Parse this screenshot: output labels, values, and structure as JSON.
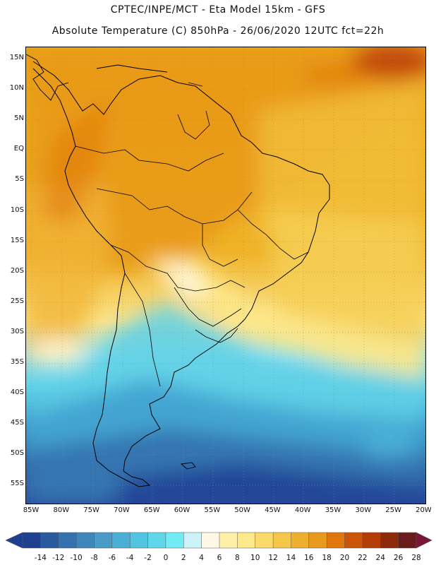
{
  "header": {
    "line1": "CPTEC/INPE/MCT -  Eta Model 15km - GFS",
    "line2": "Absolute Temperature (C) 850hPa - 26/06/2020 12UTC fct=22h"
  },
  "map": {
    "lat_labels": [
      "15N",
      "10N",
      "5N",
      "EQ",
      "5S",
      "10S",
      "15S",
      "20S",
      "25S",
      "30S",
      "35S",
      "40S",
      "45S",
      "50S",
      "55S"
    ],
    "lon_labels": [
      "85W",
      "80W",
      "75W",
      "70W",
      "65W",
      "60W",
      "55W",
      "50W",
      "45W",
      "40W",
      "35W",
      "30W",
      "25W",
      "20W"
    ]
  },
  "legend": {
    "tick_labels": [
      "-14",
      "-12",
      "-10",
      "-8",
      "-6",
      "-4",
      "-2",
      "0",
      "2",
      "4",
      "6",
      "8",
      "10",
      "12",
      "14",
      "16",
      "18",
      "20",
      "22",
      "24",
      "26",
      "28"
    ],
    "colors": [
      "#1f3f8f",
      "#2a5a9e",
      "#3571ad",
      "#3f86bb",
      "#4a9bc8",
      "#4aaed6",
      "#52c4e2",
      "#60d6ea",
      "#72ecf4",
      "#ccf4f8",
      "#fff8e6",
      "#fff0a8",
      "#fde98a",
      "#fbd96a",
      "#f5c64a",
      "#eeb02c",
      "#e89a1c",
      "#e0760e",
      "#cc540a",
      "#b43c06",
      "#8c2a0a",
      "#6a1c1c"
    ]
  }
}
